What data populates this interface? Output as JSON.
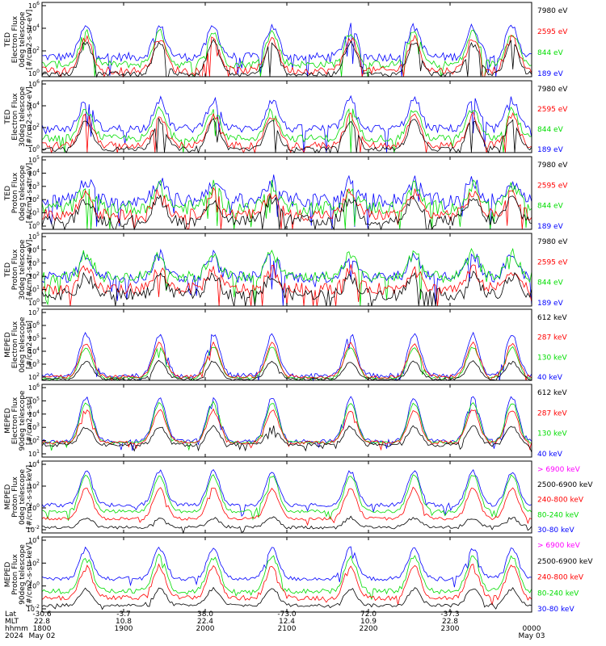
{
  "chart_data": [
    {
      "type": "line",
      "ylabel_lines": [
        "TED",
        "Electron Flux",
        "0deg telescope",
        "[#/cm2-s-str-eV]"
      ],
      "ytick_labels": [
        "10^6",
        "10^4",
        "10^2",
        "10^0"
      ],
      "ylim_exp": [
        0,
        6
      ],
      "legend": [
        {
          "label": "7980 eV",
          "color": "#000000"
        },
        {
          "label": "2595 eV",
          "color": "#ff0000"
        },
        {
          "label": "844 eV",
          "color": "#00dd00"
        },
        {
          "label": "189 eV",
          "color": "#0000ff"
        }
      ],
      "series": [
        {
          "color": "#0000ff",
          "base": 1.6,
          "spread": 0.35,
          "peak": 2.4,
          "depth": 1.0
        },
        {
          "color": "#00dd00",
          "base": 1.0,
          "spread": 0.3,
          "peak": 2.6,
          "depth": 1.5
        },
        {
          "color": "#ff0000",
          "base": 0.5,
          "spread": 0.3,
          "peak": 2.6,
          "depth": 2.0
        },
        {
          "color": "#000000",
          "base": 0.2,
          "spread": 0.2,
          "peak": 2.6,
          "depth": 3.0
        }
      ]
    },
    {
      "type": "line",
      "ylabel_lines": [
        "TED",
        "Electron Flux",
        "30deg telescope",
        "[#/cm2-s-str-eV]"
      ],
      "ytick_labels": [
        "10^6",
        "10^4",
        "10^2",
        "10^0"
      ],
      "ylim_exp": [
        0,
        6
      ],
      "legend": [
        {
          "label": "7980 eV",
          "color": "#000000"
        },
        {
          "label": "2595 eV",
          "color": "#ff0000"
        },
        {
          "label": "844 eV",
          "color": "#00dd00"
        },
        {
          "label": "189 eV",
          "color": "#0000ff"
        }
      ],
      "series": [
        {
          "color": "#0000ff",
          "base": 2.0,
          "spread": 0.35,
          "peak": 2.4,
          "depth": 1.0
        },
        {
          "color": "#00dd00",
          "base": 1.2,
          "spread": 0.3,
          "peak": 2.4,
          "depth": 1.5
        },
        {
          "color": "#ff0000",
          "base": 0.6,
          "spread": 0.3,
          "peak": 2.5,
          "depth": 2.0
        },
        {
          "color": "#000000",
          "base": 0.3,
          "spread": 0.2,
          "peak": 2.4,
          "depth": 3.0
        }
      ]
    },
    {
      "type": "line",
      "ylabel_lines": [
        "TED",
        "Proton Flux",
        "0deg telescope",
        "[#/cm2-s-str-eV]"
      ],
      "ytick_labels": [
        "10^5",
        "10^4",
        "10^3",
        "10^2",
        "10^1",
        "10^0"
      ],
      "ylim_exp": [
        0,
        5
      ],
      "legend": [
        {
          "label": "7980 eV",
          "color": "#000000"
        },
        {
          "label": "2595 eV",
          "color": "#ff0000"
        },
        {
          "label": "844 eV",
          "color": "#00dd00"
        },
        {
          "label": "189 eV",
          "color": "#0000ff"
        }
      ],
      "series": [
        {
          "color": "#0000ff",
          "base": 2.0,
          "spread": 0.5,
          "peak": 1.3,
          "depth": 1.0
        },
        {
          "color": "#00dd00",
          "base": 1.5,
          "spread": 0.5,
          "peak": 1.4,
          "depth": 1.0
        },
        {
          "color": "#ff0000",
          "base": 1.0,
          "spread": 0.4,
          "peak": 1.5,
          "depth": 1.0
        },
        {
          "color": "#000000",
          "base": 0.6,
          "spread": 0.4,
          "peak": 1.5,
          "depth": 1.0
        }
      ]
    },
    {
      "type": "line",
      "ylabel_lines": [
        "TED",
        "Proton Flux",
        "30deg telescope",
        "[#/cm2-s-str-eV]"
      ],
      "ytick_labels": [
        "10^5",
        "10^4",
        "10^3",
        "10^2",
        "10^1",
        "10^0"
      ],
      "ylim_exp": [
        0,
        5
      ],
      "legend": [
        {
          "label": "7980 eV",
          "color": "#000000"
        },
        {
          "label": "2595 eV",
          "color": "#ff0000"
        },
        {
          "label": "844 eV",
          "color": "#00dd00"
        },
        {
          "label": "189 eV",
          "color": "#0000ff"
        }
      ],
      "series": [
        {
          "color": "#0000ff",
          "base": 2.0,
          "spread": 0.4,
          "peak": 1.5,
          "depth": 1.0
        },
        {
          "color": "#00dd00",
          "base": 2.0,
          "spread": 0.4,
          "peak": 1.6,
          "depth": 0.8
        },
        {
          "color": "#ff0000",
          "base": 1.2,
          "spread": 0.4,
          "peak": 1.3,
          "depth": 1.0
        },
        {
          "color": "#000000",
          "base": 0.8,
          "spread": 0.4,
          "peak": 1.2,
          "depth": 1.0
        }
      ]
    },
    {
      "type": "line",
      "ylabel_lines": [
        "MEPED",
        "Electron Flux",
        "0deg telescope",
        "[#/cm2-s-str]"
      ],
      "ytick_labels": [
        "10^7",
        "10^6",
        "10^5",
        "10^4",
        "10^3",
        "10^2"
      ],
      "ylim_exp": [
        2,
        8
      ],
      "legend": [
        {
          "label": "612 keV",
          "color": "#000000"
        },
        {
          "label": "287 keV",
          "color": "#ff0000"
        },
        {
          "label": "130 keV",
          "color": "#00dd00"
        },
        {
          "label": "40 keV",
          "color": "#0000ff"
        }
      ],
      "series": [
        {
          "color": "#0000ff",
          "base": 2.4,
          "spread": 0.2,
          "peak": 3.5,
          "depth": 0.5
        },
        {
          "color": "#00dd00",
          "base": 2.2,
          "spread": 0.1,
          "peak": 2.6,
          "depth": 0.3
        },
        {
          "color": "#ff0000",
          "base": 2.3,
          "spread": 0.15,
          "peak": 2.8,
          "depth": 0.3
        },
        {
          "color": "#000000",
          "base": 2.1,
          "spread": 0.1,
          "peak": 1.5,
          "depth": 0.2
        }
      ]
    },
    {
      "type": "line",
      "ylabel_lines": [
        "MEPED",
        "Electron Flux",
        "90deg telescope",
        "[#/cm2-s-str]"
      ],
      "ytick_labels": [
        "10^6",
        "10^5",
        "10^4",
        "10^3",
        "10^2",
        "10^1"
      ],
      "ylim_exp": [
        1,
        7
      ],
      "legend": [
        {
          "label": "612 keV",
          "color": "#000000"
        },
        {
          "label": "287 keV",
          "color": "#ff0000"
        },
        {
          "label": "130 keV",
          "color": "#00dd00"
        },
        {
          "label": "40 keV",
          "color": "#0000ff"
        }
      ],
      "series": [
        {
          "color": "#0000ff",
          "base": 2.3,
          "spread": 0.15,
          "peak": 3.6,
          "depth": 0.3
        },
        {
          "color": "#00dd00",
          "base": 2.2,
          "spread": 0.1,
          "peak": 3.3,
          "depth": 0.2
        },
        {
          "color": "#ff0000",
          "base": 2.2,
          "spread": 0.15,
          "peak": 2.7,
          "depth": 0.2
        },
        {
          "color": "#000000",
          "base": 2.0,
          "spread": 0.15,
          "peak": 1.5,
          "depth": 0.2
        }
      ]
    },
    {
      "type": "line",
      "ylabel_lines": [
        "MEPED",
        "Proton Flux",
        "0deg telescope",
        "[#/cm2-s-str-keV]"
      ],
      "ytick_labels": [
        "10^4",
        "10^2",
        "10^0",
        "10^-2"
      ],
      "ylim_exp": [
        -3,
        6
      ],
      "legend": [
        {
          "label": "> 6900 keV",
          "color": "#ff00ff"
        },
        {
          "label": "2500-6900 keV",
          "color": "#000000"
        },
        {
          "label": "240-800 keV",
          "color": "#ff0000"
        },
        {
          "label": "80-240 keV",
          "color": "#00dd00"
        },
        {
          "label": "30-80 keV",
          "color": "#0000ff"
        }
      ],
      "series": [
        {
          "color": "#0000ff",
          "base": 0.5,
          "spread": 0.25,
          "peak": 4.2,
          "depth": 0.5
        },
        {
          "color": "#00dd00",
          "base": -0.3,
          "spread": 0.2,
          "peak": 4.5,
          "depth": 0.4
        },
        {
          "color": "#ff0000",
          "base": -1.2,
          "spread": 0.2,
          "peak": 3.8,
          "depth": 0.3
        },
        {
          "color": "#000000",
          "base": -2.3,
          "spread": 0.2,
          "peak": 1.2,
          "depth": 0.2
        }
      ]
    },
    {
      "type": "line",
      "ylabel_lines": [
        "MEPED",
        "Proton Flux",
        "90deg telescope",
        "[#/cm2-s-str-keV]"
      ],
      "ytick_labels": [
        "10^4",
        "10^2",
        "10^0",
        "10^-2"
      ],
      "ylim_exp": [
        -3,
        6
      ],
      "legend": [
        {
          "label": "> 6900 keV",
          "color": "#ff00ff"
        },
        {
          "label": "2500-6900 keV",
          "color": "#000000"
        },
        {
          "label": "240-800 keV",
          "color": "#ff0000"
        },
        {
          "label": "80-240 keV",
          "color": "#00dd00"
        },
        {
          "label": "30-80 keV",
          "color": "#0000ff"
        }
      ],
      "series": [
        {
          "color": "#0000ff",
          "base": 1.0,
          "spread": 0.25,
          "peak": 3.6,
          "depth": 0.4
        },
        {
          "color": "#00dd00",
          "base": -0.5,
          "spread": 0.3,
          "peak": 4.2,
          "depth": 0.4
        },
        {
          "color": "#ff0000",
          "base": -1.3,
          "spread": 0.3,
          "peak": 3.8,
          "depth": 0.3
        },
        {
          "color": "#000000",
          "base": -2.2,
          "spread": 0.2,
          "peak": 2.0,
          "depth": 0.2
        }
      ]
    }
  ],
  "x_axis": {
    "row_labels": [
      "Lat",
      "MLT",
      "hhmm",
      "2024"
    ],
    "columns": [
      {
        "lat": "-30.6",
        "mlt": "22.8",
        "hhmm": "1800",
        "date": "May 02"
      },
      {
        "lat": "-3.7",
        "mlt": "10.8",
        "hhmm": "1900",
        "date": ""
      },
      {
        "lat": "38.0",
        "mlt": "22.4",
        "hhmm": "2000",
        "date": ""
      },
      {
        "lat": "-73.0",
        "mlt": "12.4",
        "hhmm": "2100",
        "date": ""
      },
      {
        "lat": "72.0",
        "mlt": "10.9",
        "hhmm": "2200",
        "date": ""
      },
      {
        "lat": "-37.3",
        "mlt": "22.8",
        "hhmm": "2300",
        "date": ""
      },
      {
        "lat": "",
        "mlt": "",
        "hhmm": "0000",
        "date": "May 03"
      }
    ],
    "events": [
      0.09,
      0.24,
      0.35,
      0.47,
      0.63,
      0.76,
      0.88,
      0.96
    ]
  }
}
